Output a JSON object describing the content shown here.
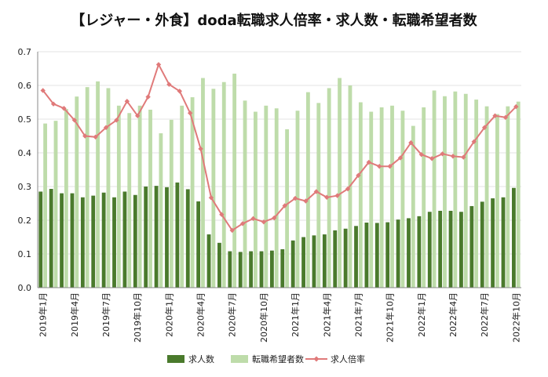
{
  "chart_data": {
    "type": "bar",
    "title": "【レジャー・外食】doda転職求人倍率・求人数・転職希望者数",
    "categories": [
      "2019年1月",
      "2019年2月",
      "2019年3月",
      "2019年4月",
      "2019年5月",
      "2019年6月",
      "2019年7月",
      "2019年8月",
      "2019年9月",
      "2019年10月",
      "2019年11月",
      "2019年12月",
      "2020年1月",
      "2020年2月",
      "2020年3月",
      "2020年4月",
      "2020年5月",
      "2020年6月",
      "2020年7月",
      "2020年8月",
      "2020年9月",
      "2020年10月",
      "2020年11月",
      "2020年12月",
      "2021年1月",
      "2021年2月",
      "2021年3月",
      "2021年4月",
      "2021年5月",
      "2021年6月",
      "2021年7月",
      "2021年8月",
      "2021年9月",
      "2021年10月",
      "2021年11月",
      "2021年12月",
      "2022年1月",
      "2022年2月",
      "2022年3月",
      "2022年4月",
      "2022年5月",
      "2022年6月",
      "2022年7月",
      "2022年8月",
      "2022年9月",
      "2022年10月"
    ],
    "tick_labels": [
      "2019年1月",
      "",
      "",
      "2019年4月",
      "",
      "",
      "2019年7月",
      "",
      "",
      "2019年10月",
      "",
      "",
      "2020年1月",
      "",
      "",
      "2020年4月",
      "",
      "",
      "2020年7月",
      "",
      "",
      "2020年10月",
      "",
      "",
      "2021年1月",
      "",
      "",
      "2021年4月",
      "",
      "",
      "2021年7月",
      "",
      "",
      "2021年10月",
      "",
      "",
      "2022年1月",
      "",
      "",
      "2022年4月",
      "",
      "",
      "2022年7月",
      "",
      "",
      "2022年10月"
    ],
    "ylim": [
      0,
      0.7
    ],
    "yticks": [
      "0.0",
      "0.1",
      "0.2",
      "0.3",
      "0.4",
      "0.5",
      "0.6",
      "0.7"
    ],
    "grid": true,
    "legend_position": "bottom",
    "series": [
      {
        "name": "求人数",
        "kind": "bar",
        "color": "#4a7a2c",
        "values": [
          0.285,
          0.293,
          0.28,
          0.28,
          0.268,
          0.273,
          0.282,
          0.268,
          0.285,
          0.275,
          0.3,
          0.302,
          0.298,
          0.312,
          0.292,
          0.256,
          0.158,
          0.133,
          0.108,
          0.106,
          0.108,
          0.108,
          0.11,
          0.114,
          0.14,
          0.15,
          0.155,
          0.158,
          0.17,
          0.175,
          0.183,
          0.193,
          0.192,
          0.194,
          0.202,
          0.206,
          0.212,
          0.225,
          0.228,
          0.228,
          0.225,
          0.242,
          0.255,
          0.265,
          0.268,
          0.296
        ]
      },
      {
        "name": "転職希望者数",
        "kind": "bar",
        "color": "#bedcaa",
        "values": [
          0.487,
          0.495,
          0.53,
          0.567,
          0.595,
          0.612,
          0.592,
          0.54,
          0.518,
          0.54,
          0.528,
          0.458,
          0.498,
          0.54,
          0.565,
          0.622,
          0.59,
          0.61,
          0.635,
          0.555,
          0.522,
          0.54,
          0.532,
          0.47,
          0.525,
          0.58,
          0.548,
          0.592,
          0.622,
          0.6,
          0.55,
          0.522,
          0.535,
          0.54,
          0.525,
          0.48,
          0.535,
          0.585,
          0.568,
          0.582,
          0.575,
          0.558,
          0.538,
          0.515,
          0.538,
          0.552
        ]
      },
      {
        "name": "求人倍率",
        "kind": "line",
        "color": "#e07a7a",
        "values": [
          0.585,
          0.545,
          0.532,
          0.497,
          0.45,
          0.447,
          0.475,
          0.497,
          0.553,
          0.51,
          0.566,
          0.662,
          0.603,
          0.583,
          0.518,
          0.412,
          0.267,
          0.217,
          0.17,
          0.19,
          0.205,
          0.195,
          0.207,
          0.243,
          0.265,
          0.257,
          0.285,
          0.268,
          0.273,
          0.293,
          0.333,
          0.372,
          0.36,
          0.36,
          0.385,
          0.43,
          0.395,
          0.383,
          0.397,
          0.39,
          0.387,
          0.433,
          0.475,
          0.51,
          0.505,
          0.537
        ]
      }
    ]
  }
}
